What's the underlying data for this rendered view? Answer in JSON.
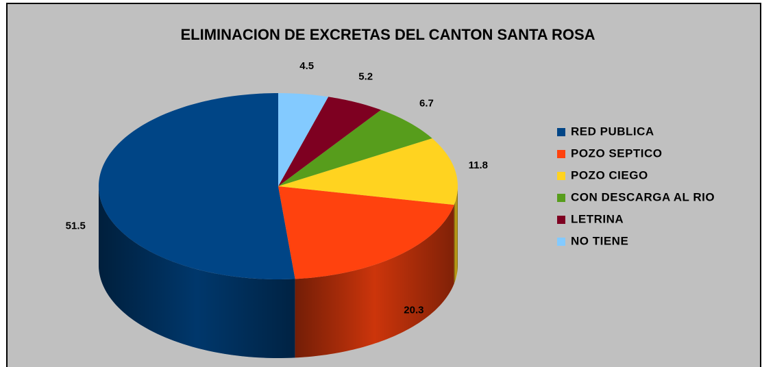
{
  "chart_data": {
    "type": "pie3d",
    "title": "ELIMINACION DE EXCRETAS DEL CANTON SANTA ROSA",
    "categories": [
      "RED PUBLICA",
      "POZO SEPTICO",
      "POZO CIEGO",
      "CON DESCARGA AL RIO",
      "LETRINA",
      "NO TIENE"
    ],
    "values": [
      51.5,
      20.3,
      11.8,
      6.7,
      5.2,
      4.5
    ],
    "colors": [
      "#004586",
      "#ff420e",
      "#ffd320",
      "#579d1c",
      "#7e0021",
      "#83caff"
    ],
    "legend": "right"
  }
}
